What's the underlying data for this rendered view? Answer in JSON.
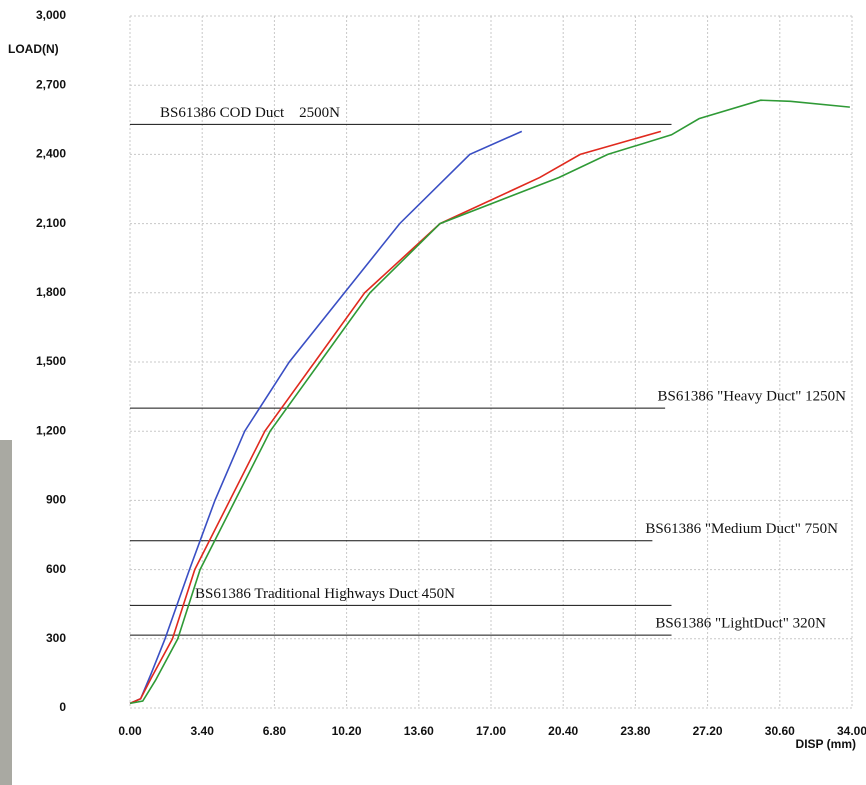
{
  "chart_data": {
    "type": "line",
    "y_label": "LOAD(N)",
    "x_label": "DISP (mm)",
    "xlim": [
      0,
      34
    ],
    "ylim": [
      0,
      3000
    ],
    "grid": true,
    "xticks": [
      {
        "value": 0,
        "label": "0.00"
      },
      {
        "value": 3.4,
        "label": "3.40"
      },
      {
        "value": 6.8,
        "label": "6.80"
      },
      {
        "value": 10.2,
        "label": "10.20"
      },
      {
        "value": 13.6,
        "label": "13.60"
      },
      {
        "value": 17,
        "label": "17.00"
      },
      {
        "value": 20.4,
        "label": "20.40"
      },
      {
        "value": 23.8,
        "label": "23.80"
      },
      {
        "value": 27.2,
        "label": "27.20"
      },
      {
        "value": 30.6,
        "label": "30.60"
      },
      {
        "value": 34,
        "label": "34.00"
      }
    ],
    "yticks": [
      0,
      300,
      600,
      900,
      {
        "value": 1200,
        "label": "1,200"
      },
      {
        "value": 1500,
        "label": "1,500"
      },
      {
        "value": 1800,
        "label": "1,800"
      },
      {
        "value": 2100,
        "label": "2,100"
      },
      {
        "value": 2400,
        "label": "2,400"
      },
      {
        "value": 2700,
        "label": "2,700"
      },
      {
        "value": 3000,
        "label": "3,000"
      }
    ],
    "series": [
      {
        "color": "#3a4fc4",
        "x": [
          0,
          0.5,
          1.0,
          1.65,
          2.8,
          4.0,
          5.4,
          7.5,
          10.1,
          12.7,
          16.0,
          18.45
        ],
        "values": [
          20,
          40,
          150,
          300,
          600,
          900,
          1200,
          1500,
          1800,
          2100,
          2400,
          2500
        ]
      },
      {
        "color": "#e02a1e",
        "x": [
          0,
          0.5,
          1.0,
          2.0,
          3.05,
          4.7,
          6.35,
          8.7,
          11.05,
          14.6,
          19.3,
          21.2,
          25.0
        ],
        "values": [
          20,
          40,
          130,
          300,
          600,
          900,
          1200,
          1500,
          1800,
          2100,
          2300,
          2400,
          2500
        ]
      },
      {
        "color": "#2f9a36",
        "x": [
          0,
          0.6,
          1.2,
          2.25,
          3.3,
          4.95,
          6.6,
          8.95,
          11.3,
          14.6,
          20.2,
          22.5,
          25.5,
          26.8,
          29.7,
          31.1,
          33.9
        ],
        "values": [
          20,
          30,
          120,
          300,
          600,
          900,
          1200,
          1500,
          1800,
          2100,
          2300,
          2400,
          2485,
          2555,
          2635,
          2630,
          2605
        ]
      }
    ],
    "annotations": [
      {
        "text": "BS61386 COD Duct    2500N",
        "y": 2530,
        "x": [
          0,
          25.5
        ]
      },
      {
        "text": "BS61386 \"Heavy Duct\" 1250N",
        "y": 1300,
        "x": [
          0,
          25.2
        ]
      },
      {
        "text": "BS61386 \"Medium Duct\" 750N",
        "y": 725,
        "x": [
          0,
          24.6
        ]
      },
      {
        "text": "BS61386 Traditional Highways Duct 450N",
        "y": 445,
        "x": [
          0,
          25.5
        ]
      },
      {
        "text": "BS61386 \"LightDuct\" 320N",
        "y": 316,
        "x": [
          0,
          25.5
        ]
      }
    ]
  }
}
